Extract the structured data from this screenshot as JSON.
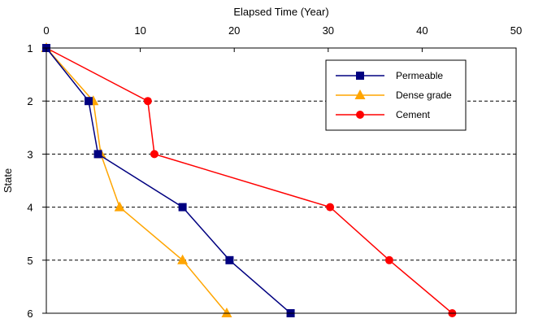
{
  "chart_data": {
    "type": "line",
    "title": "",
    "xlabel": "Elapsed Time (Year)",
    "ylabel": "State",
    "xlim": [
      0,
      50
    ],
    "x_ticks": [
      0,
      10,
      20,
      30,
      40,
      50
    ],
    "ylim": [
      1,
      6
    ],
    "y_ticks": [
      1,
      2,
      3,
      4,
      5,
      6
    ],
    "y_inverted": true,
    "x_axis_position": "top",
    "grid": "horizontal dashed",
    "legend_position": "top-right",
    "series": [
      {
        "name": "Permeable",
        "color": "#000080",
        "marker": "square",
        "points": [
          [
            0,
            1
          ],
          [
            4.5,
            2
          ],
          [
            5.5,
            3
          ],
          [
            14.5,
            4
          ],
          [
            19.5,
            5
          ],
          [
            26,
            6
          ]
        ]
      },
      {
        "name": "Dense grade",
        "color": "#FFA500",
        "marker": "triangle",
        "points": [
          [
            0,
            1
          ],
          [
            5,
            2
          ],
          [
            5.8,
            3
          ],
          [
            7.8,
            4
          ],
          [
            14.5,
            5
          ],
          [
            19.2,
            6
          ]
        ]
      },
      {
        "name": "Cement",
        "color": "#FF0000",
        "marker": "circle",
        "points": [
          [
            0,
            1
          ],
          [
            10.8,
            2
          ],
          [
            11.5,
            3
          ],
          [
            30.2,
            4
          ],
          [
            36.5,
            5
          ],
          [
            43.2,
            6
          ]
        ]
      }
    ]
  }
}
